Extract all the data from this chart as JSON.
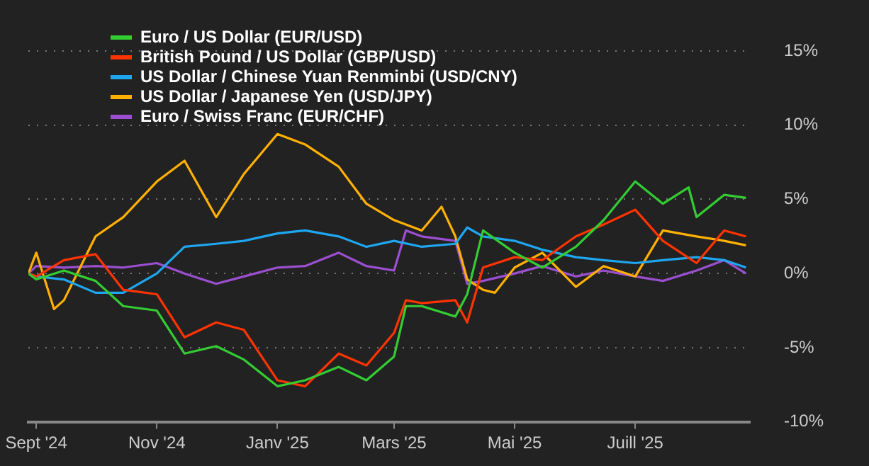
{
  "chart_data": {
    "type": "line",
    "xlim": [
      "2024-08-28",
      "2025-08-28"
    ],
    "xticks": [
      {
        "value": "2024-09-01",
        "label": "Sept '24"
      },
      {
        "value": "2024-11-01",
        "label": "Nov '24"
      },
      {
        "value": "2025-01-01",
        "label": "Janv '25"
      },
      {
        "value": "2025-03-01",
        "label": "Mars '25"
      },
      {
        "value": "2025-05-01",
        "label": "Mai '25"
      },
      {
        "value": "2025-07-01",
        "label": "Juill '25"
      }
    ],
    "ylim": [
      -10,
      15
    ],
    "yticks": [
      {
        "value": -10,
        "label": "-10%"
      },
      {
        "value": -5,
        "label": "-5%"
      },
      {
        "value": 0,
        "label": "0%"
      },
      {
        "value": 5,
        "label": "5%"
      },
      {
        "value": 10,
        "label": "10%"
      },
      {
        "value": 15,
        "label": "15%"
      }
    ],
    "grid": "y",
    "legend": "top left",
    "marker": "none",
    "line_style": "solid",
    "series": [
      {
        "name": "Euro / US Dollar (EUR/USD)",
        "color": "#33cc33",
        "x": [
          "2024-08-28",
          "2024-09-01",
          "2024-09-15",
          "2024-10-01",
          "2024-10-15",
          "2024-11-01",
          "2024-11-15",
          "2024-12-01",
          "2024-12-15",
          "2025-01-01",
          "2025-01-15",
          "2025-02-01",
          "2025-02-15",
          "2025-03-01",
          "2025-03-07",
          "2025-03-15",
          "2025-04-01",
          "2025-04-07",
          "2025-04-15",
          "2025-05-01",
          "2025-05-15",
          "2025-06-01",
          "2025-06-15",
          "2025-07-01",
          "2025-07-15",
          "2025-07-28",
          "2025-08-01",
          "2025-08-15",
          "2025-08-26"
        ],
        "values": [
          0,
          -0.4,
          0.2,
          -0.5,
          -2.2,
          -2.5,
          -5.4,
          -4.9,
          -5.8,
          -7.6,
          -7.2,
          -6.3,
          -7.2,
          -5.6,
          -2.2,
          -2.2,
          -2.9,
          -1.4,
          2.9,
          1.4,
          0.4,
          1.8,
          3.6,
          6.2,
          4.7,
          5.8,
          3.8,
          5.3,
          5.1
        ]
      },
      {
        "name": "British Pound / US Dollar (GBP/USD)",
        "color": "#ff3300",
        "x": [
          "2024-08-28",
          "2024-09-01",
          "2024-09-15",
          "2024-10-01",
          "2024-10-15",
          "2024-11-01",
          "2024-11-15",
          "2024-12-01",
          "2024-12-15",
          "2025-01-01",
          "2025-01-15",
          "2025-02-01",
          "2025-02-15",
          "2025-03-01",
          "2025-03-07",
          "2025-03-15",
          "2025-04-01",
          "2025-04-07",
          "2025-04-15",
          "2025-05-01",
          "2025-05-15",
          "2025-06-01",
          "2025-06-15",
          "2025-07-01",
          "2025-07-15",
          "2025-08-01",
          "2025-08-15",
          "2025-08-26"
        ],
        "values": [
          0,
          -0.2,
          0.9,
          1.3,
          -1.1,
          -1.4,
          -4.3,
          -3.3,
          -3.8,
          -7.2,
          -7.6,
          -5.4,
          -6.2,
          -4.0,
          -1.8,
          -2.0,
          -1.8,
          -3.3,
          0.4,
          1.1,
          0.9,
          2.5,
          3.3,
          4.3,
          2.2,
          0.7,
          2.9,
          2.5
        ]
      },
      {
        "name": "US Dollar / Chinese Yuan Renminbi (USD/CNY)",
        "color": "#1ea7f0",
        "x": [
          "2024-08-28",
          "2024-09-01",
          "2024-09-15",
          "2024-10-01",
          "2024-10-15",
          "2024-11-01",
          "2024-11-15",
          "2024-12-01",
          "2024-12-15",
          "2025-01-01",
          "2025-01-15",
          "2025-02-01",
          "2025-02-15",
          "2025-03-01",
          "2025-03-15",
          "2025-04-01",
          "2025-04-07",
          "2025-04-15",
          "2025-05-01",
          "2025-05-15",
          "2025-06-01",
          "2025-06-15",
          "2025-07-01",
          "2025-07-15",
          "2025-08-01",
          "2025-08-15",
          "2025-08-26"
        ],
        "values": [
          0,
          -0.2,
          -0.4,
          -1.3,
          -1.3,
          0,
          1.8,
          2.0,
          2.2,
          2.7,
          2.9,
          2.5,
          1.8,
          2.2,
          1.8,
          2.0,
          3.1,
          2.5,
          2.2,
          1.6,
          1.1,
          0.9,
          0.7,
          0.9,
          1.1,
          0.9,
          0.4
        ]
      },
      {
        "name": "US Dollar / Japanese Yen (USD/JPY)",
        "color": "#ffb000",
        "x": [
          "2024-08-28",
          "2024-09-01",
          "2024-09-10",
          "2024-09-15",
          "2024-10-01",
          "2024-10-15",
          "2024-11-01",
          "2024-11-15",
          "2024-12-01",
          "2024-12-15",
          "2025-01-01",
          "2025-01-15",
          "2025-02-01",
          "2025-02-15",
          "2025-03-01",
          "2025-03-15",
          "2025-03-25",
          "2025-04-01",
          "2025-04-07",
          "2025-04-15",
          "2025-04-21",
          "2025-05-01",
          "2025-05-15",
          "2025-06-01",
          "2025-06-15",
          "2025-07-01",
          "2025-07-15",
          "2025-08-01",
          "2025-08-15",
          "2025-08-26"
        ],
        "values": [
          0,
          1.4,
          -2.4,
          -1.8,
          2.5,
          3.8,
          6.2,
          7.6,
          3.8,
          6.7,
          9.4,
          8.7,
          7.2,
          4.7,
          3.6,
          2.9,
          4.5,
          2.5,
          -0.4,
          -1.1,
          -1.3,
          0.4,
          1.4,
          -0.9,
          0.5,
          -0.2,
          2.9,
          2.5,
          2.2,
          1.9
        ]
      },
      {
        "name": "Euro / Swiss Franc (EUR/CHF)",
        "color": "#9b4fd0",
        "x": [
          "2024-08-28",
          "2024-09-01",
          "2024-09-15",
          "2024-10-01",
          "2024-10-15",
          "2024-11-01",
          "2024-11-15",
          "2024-12-01",
          "2024-12-15",
          "2025-01-01",
          "2025-01-15",
          "2025-02-01",
          "2025-02-15",
          "2025-03-01",
          "2025-03-07",
          "2025-03-15",
          "2025-04-01",
          "2025-04-07",
          "2025-04-15",
          "2025-05-01",
          "2025-05-15",
          "2025-06-01",
          "2025-06-15",
          "2025-07-01",
          "2025-07-15",
          "2025-08-01",
          "2025-08-15",
          "2025-08-26"
        ],
        "values": [
          0,
          0.5,
          0.4,
          0.5,
          0.4,
          0.7,
          0,
          -0.7,
          -0.2,
          0.4,
          0.5,
          1.4,
          0.5,
          0.2,
          2.9,
          2.5,
          2.2,
          -0.7,
          -0.5,
          0,
          0.5,
          -0.2,
          0.2,
          -0.2,
          -0.5,
          0.2,
          0.9,
          0
        ]
      }
    ]
  }
}
